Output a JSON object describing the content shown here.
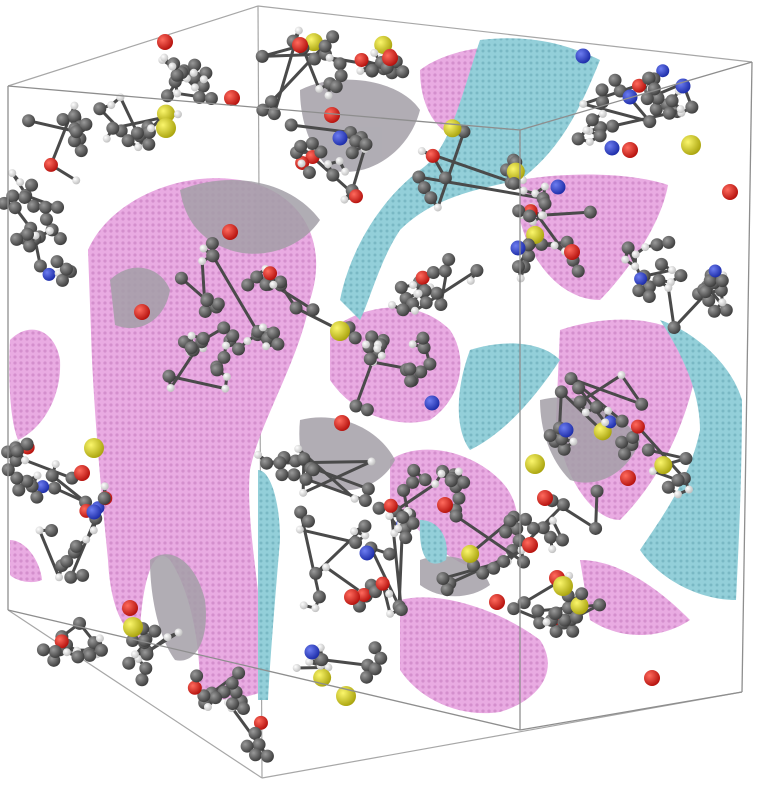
{
  "scene": {
    "subject": "molecular-dynamics-simulation-box",
    "palette": {
      "background": "#ffffff",
      "box_edge": "#9a9a9a",
      "surface_pink": "#e7a6df",
      "surface_pink_dark": "#c98fc4",
      "surface_grey": "#9e9aa3",
      "surface_cyan": "#8ccbd6",
      "carbon": "#5b5b5b",
      "carbon_dark": "#3e3e3e",
      "hydrogen": "#f2f2f2",
      "oxygen": "#e0231f",
      "nitrogen": "#2a3fd0",
      "sulfur": "#d8d21e"
    },
    "atom_types": [
      "carbon",
      "hydrogen",
      "oxygen",
      "nitrogen",
      "sulfur"
    ],
    "components": [
      "simulation-box-wireframe",
      "pore-surface-pink",
      "pore-surface-grey",
      "pore-surface-cyan",
      "atom-cluster"
    ]
  }
}
